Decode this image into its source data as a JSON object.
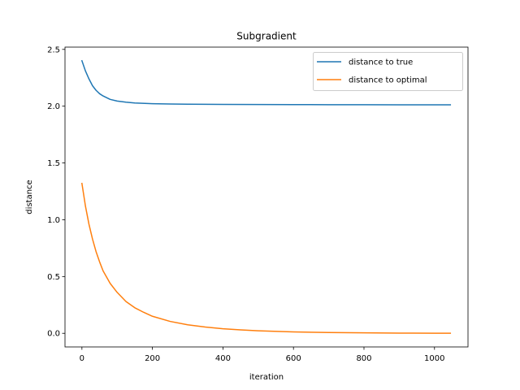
{
  "chart_data": {
    "type": "line",
    "title": "Subgradient",
    "xlabel": "iteration",
    "ylabel": "distance",
    "xlim": [
      -48,
      1095
    ],
    "ylim": [
      -0.12,
      2.52
    ],
    "xticks": [
      0,
      200,
      400,
      600,
      800,
      1000
    ],
    "yticks": [
      0.0,
      0.5,
      1.0,
      1.5,
      2.0,
      2.5
    ],
    "xtick_labels": [
      "0",
      "200",
      "400",
      "600",
      "800",
      "1000"
    ],
    "ytick_labels": [
      "0.0",
      "0.5",
      "1.0",
      "1.5",
      "2.0",
      "2.5"
    ],
    "grid": false,
    "legend_position": "upper right",
    "series": [
      {
        "name": "distance to true",
        "color": "#1f77b4",
        "x": [
          0,
          10,
          20,
          30,
          40,
          50,
          60,
          80,
          100,
          125,
          150,
          200,
          250,
          300,
          400,
          500,
          600,
          700,
          800,
          900,
          1000,
          1045
        ],
        "y": [
          2.4,
          2.31,
          2.24,
          2.18,
          2.14,
          2.11,
          2.09,
          2.06,
          2.045,
          2.035,
          2.028,
          2.022,
          2.019,
          2.017,
          2.016,
          2.015,
          2.014,
          2.013,
          2.013,
          2.012,
          2.012,
          2.012
        ]
      },
      {
        "name": "distance to optimal",
        "color": "#ff7f0e",
        "x": [
          0,
          10,
          20,
          30,
          40,
          50,
          60,
          80,
          100,
          125,
          150,
          175,
          200,
          250,
          300,
          350,
          400,
          450,
          500,
          600,
          700,
          800,
          900,
          1000,
          1045
        ],
        "y": [
          1.32,
          1.12,
          0.96,
          0.83,
          0.72,
          0.63,
          0.55,
          0.44,
          0.36,
          0.28,
          0.225,
          0.185,
          0.15,
          0.105,
          0.075,
          0.055,
          0.04,
          0.03,
          0.022,
          0.012,
          0.007,
          0.004,
          0.002,
          0.001,
          0.001
        ]
      }
    ]
  }
}
